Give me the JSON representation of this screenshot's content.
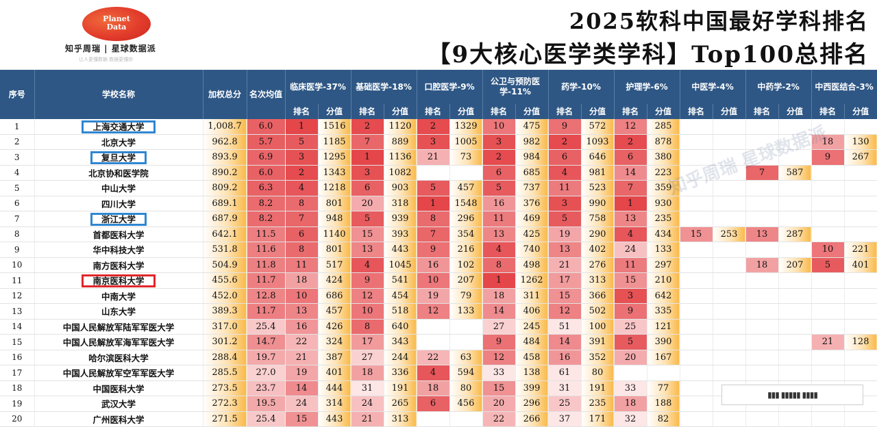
{
  "brand": {
    "logo_line1": "Planet",
    "logo_line2": "Data",
    "subtitle": "知乎周瑞 | 星球数据派",
    "tagline": "让人更懂数据 数据更懂你"
  },
  "title": {
    "line1": "2025软科中国最好学科排名",
    "line2": "【9大核心医学类学科】Top100总排名"
  },
  "watermark": "知乎周瑞 星球数据派",
  "headers": {
    "index": "序号",
    "school": "学校名称",
    "weighted": "加权总分",
    "avg_rank": "名次均值",
    "groups": [
      "临床医学-37%",
      "基础医学-18%",
      "口腔医学-9%",
      "公卫与预防医学-11%",
      "药学-10%",
      "护理学-6%",
      "中医学-4%",
      "中药学-2%",
      "中西医结合-3%"
    ],
    "rank_label": "排名",
    "score_label": "分值"
  },
  "rows": [
    {
      "i": "1",
      "name": "上海交通大学",
      "box": "blue",
      "total": "1,008.7",
      "avg": "6.0",
      "v": [
        "1",
        "1516",
        "2",
        "1120",
        "2",
        "1329",
        "10",
        "475",
        "9",
        "572",
        "12",
        "285",
        "",
        "",
        "",
        "",
        "",
        ""
      ]
    },
    {
      "i": "2",
      "name": "北京大学",
      "box": "",
      "total": "962.8",
      "avg": "5.7",
      "v": [
        "5",
        "1185",
        "7",
        "889",
        "3",
        "1005",
        "3",
        "982",
        "2",
        "1093",
        "2",
        "878",
        "",
        "",
        "",
        "",
        "18",
        "130"
      ]
    },
    {
      "i": "3",
      "name": "复旦大学",
      "box": "blue",
      "total": "893.9",
      "avg": "6.9",
      "v": [
        "3",
        "1295",
        "1",
        "1136",
        "21",
        "73",
        "2",
        "984",
        "6",
        "646",
        "6",
        "380",
        "",
        "",
        "",
        "",
        "9",
        "267"
      ]
    },
    {
      "i": "4",
      "name": "北京协和医学院",
      "box": "",
      "total": "890.2",
      "avg": "6.0",
      "v": [
        "2",
        "1343",
        "3",
        "1082",
        "",
        "",
        "6",
        "685",
        "4",
        "981",
        "14",
        "223",
        "",
        "",
        "7",
        "587",
        "",
        ""
      ]
    },
    {
      "i": "5",
      "name": "中山大学",
      "box": "",
      "total": "809.2",
      "avg": "6.3",
      "v": [
        "4",
        "1218",
        "6",
        "903",
        "5",
        "457",
        "5",
        "737",
        "11",
        "523",
        "7",
        "359",
        "",
        "",
        "",
        "",
        "",
        ""
      ]
    },
    {
      "i": "6",
      "name": "四川大学",
      "box": "",
      "total": "689.1",
      "avg": "8.2",
      "v": [
        "8",
        "801",
        "20",
        "318",
        "1",
        "1548",
        "16",
        "376",
        "3",
        "990",
        "1",
        "930",
        "",
        "",
        "",
        "",
        "",
        ""
      ]
    },
    {
      "i": "7",
      "name": "浙江大学",
      "box": "blue",
      "total": "687.9",
      "avg": "8.2",
      "v": [
        "7",
        "948",
        "5",
        "939",
        "8",
        "296",
        "11",
        "469",
        "5",
        "758",
        "13",
        "235",
        "",
        "",
        "",
        "",
        "",
        ""
      ]
    },
    {
      "i": "8",
      "name": "首都医科大学",
      "box": "",
      "total": "642.1",
      "avg": "11.5",
      "v": [
        "6",
        "1140",
        "15",
        "393",
        "7",
        "354",
        "13",
        "425",
        "19",
        "290",
        "4",
        "434",
        "15",
        "253",
        "13",
        "287",
        "",
        ""
      ]
    },
    {
      "i": "9",
      "name": "华中科技大学",
      "box": "",
      "total": "531.8",
      "avg": "11.6",
      "v": [
        "8",
        "801",
        "13",
        "443",
        "9",
        "216",
        "4",
        "740",
        "13",
        "402",
        "24",
        "133",
        "",
        "",
        "",
        "",
        "10",
        "221"
      ]
    },
    {
      "i": "10",
      "name": "南方医科大学",
      "box": "",
      "total": "504.9",
      "avg": "11.8",
      "v": [
        "11",
        "517",
        "4",
        "1045",
        "16",
        "102",
        "8",
        "498",
        "21",
        "276",
        "11",
        "297",
        "",
        "",
        "18",
        "207",
        "5",
        "401"
      ]
    },
    {
      "i": "11",
      "name": "南京医科大学",
      "box": "red",
      "total": "455.6",
      "avg": "11.7",
      "v": [
        "18",
        "424",
        "9",
        "541",
        "10",
        "207",
        "1",
        "1262",
        "17",
        "313",
        "15",
        "210",
        "",
        "",
        "",
        "",
        "",
        ""
      ]
    },
    {
      "i": "12",
      "name": "中南大学",
      "box": "",
      "total": "452.0",
      "avg": "12.8",
      "v": [
        "10",
        "686",
        "12",
        "454",
        "19",
        "79",
        "18",
        "311",
        "15",
        "366",
        "3",
        "642",
        "",
        "",
        "",
        "",
        "",
        ""
      ]
    },
    {
      "i": "13",
      "name": "山东大学",
      "box": "",
      "total": "389.3",
      "avg": "11.7",
      "v": [
        "13",
        "457",
        "10",
        "518",
        "12",
        "133",
        "14",
        "406",
        "12",
        "502",
        "9",
        "335",
        "",
        "",
        "",
        "",
        "",
        ""
      ]
    },
    {
      "i": "14",
      "name": "中国人民解放军陆军军医大学",
      "box": "",
      "total": "317.0",
      "avg": "25.4",
      "v": [
        "16",
        "426",
        "8",
        "640",
        "",
        "",
        "27",
        "245",
        "51",
        "100",
        "25",
        "121",
        "",
        "",
        "",
        "",
        "",
        ""
      ]
    },
    {
      "i": "15",
      "name": "中国人民解放军海军军医大学",
      "box": "",
      "total": "301.2",
      "avg": "14.7",
      "v": [
        "22",
        "324",
        "17",
        "343",
        "",
        "",
        "9",
        "484",
        "14",
        "391",
        "5",
        "390",
        "",
        "",
        "",
        "",
        "21",
        "128"
      ]
    },
    {
      "i": "16",
      "name": "哈尔滨医科大学",
      "box": "",
      "total": "288.4",
      "avg": "19.7",
      "v": [
        "21",
        "387",
        "27",
        "244",
        "22",
        "63",
        "12",
        "458",
        "16",
        "352",
        "20",
        "167",
        "",
        "",
        "",
        "",
        "",
        ""
      ]
    },
    {
      "i": "17",
      "name": "中国人民解放军空军军医大学",
      "box": "",
      "total": "285.5",
      "avg": "27.0",
      "v": [
        "19",
        "401",
        "18",
        "336",
        "4",
        "594",
        "33",
        "138",
        "61",
        "80",
        "",
        "",
        "",
        "",
        "",
        "",
        "",
        ""
      ]
    },
    {
      "i": "18",
      "name": "中国医科大学",
      "box": "",
      "total": "273.5",
      "avg": "23.7",
      "v": [
        "14",
        "444",
        "31",
        "191",
        "18",
        "80",
        "15",
        "399",
        "31",
        "191",
        "33",
        "77",
        "",
        "",
        "",
        "",
        "",
        ""
      ]
    },
    {
      "i": "19",
      "name": "武汉大学",
      "box": "",
      "total": "272.3",
      "avg": "19.5",
      "v": [
        "24",
        "314",
        "24",
        "265",
        "6",
        "456",
        "20",
        "296",
        "25",
        "235",
        "18",
        "188",
        "",
        "",
        "",
        "",
        "",
        ""
      ]
    },
    {
      "i": "20",
      "name": "广州医科大学",
      "box": "",
      "total": "271.5",
      "avg": "25.4",
      "v": [
        "15",
        "443",
        "21",
        "313",
        "",
        "",
        "22",
        "266",
        "37",
        "171",
        "32",
        "82",
        "",
        "",
        "",
        "",
        "",
        ""
      ]
    }
  ],
  "colors": {
    "header_bg": "#2e5785",
    "rank_hot": "#e4464a",
    "rank_cool": "#fde6e6",
    "score_bar": "#f9b949",
    "box_blue": "#2f86d1",
    "box_red": "#e1262a"
  }
}
